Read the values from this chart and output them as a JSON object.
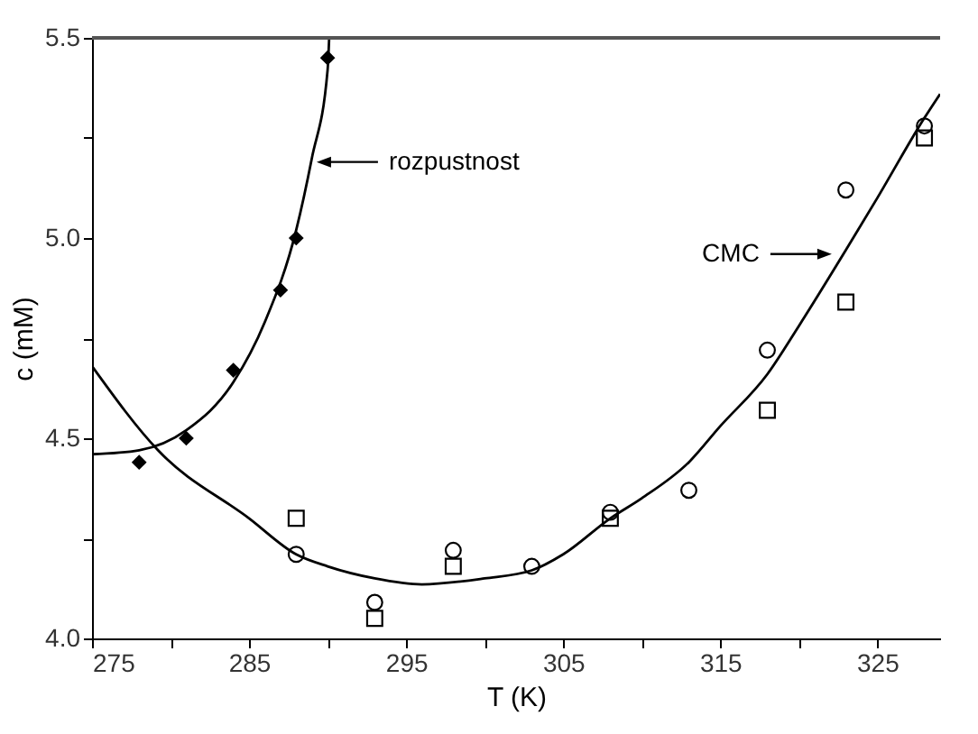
{
  "chart_data": {
    "type": "scatter",
    "xlabel": "T (K)",
    "ylabel": "c (mM)",
    "xlim": [
      275,
      329
    ],
    "ylim": [
      4.0,
      5.5
    ],
    "xticks": [
      275,
      {
        "value": 280,
        "label": null
      },
      285,
      {
        "value": 290,
        "label": null
      },
      295,
      {
        "value": 300,
        "label": null
      },
      305,
      {
        "value": 310,
        "label": null
      },
      315,
      {
        "value": 320,
        "label": null
      },
      325
    ],
    "yticks": [
      {
        "value": 4.0,
        "label": "4.0"
      },
      {
        "value": 4.25,
        "label": null
      },
      4.5,
      {
        "value": 4.75,
        "label": null
      },
      {
        "value": 5.0,
        "label": "5.0"
      },
      {
        "value": 5.25,
        "label": null
      },
      5.5
    ],
    "grid": false,
    "legend": false,
    "annotations": [
      {
        "text": "rozpustnost",
        "x": 289.3,
        "y": 5.19
      },
      {
        "text": "CMC",
        "x": 322.1,
        "y": 4.96
      }
    ],
    "series": [
      {
        "type": "line",
        "color": "#000000",
        "marker": "none",
        "line_style": "solid",
        "x": [
          275,
          278,
          281,
          284,
          286,
          288,
          289,
          290,
          290.1
        ],
        "values": [
          4.46,
          4.47,
          4.52,
          4.64,
          4.79,
          5.02,
          5.2,
          5.42,
          5.5
        ]
      },
      {
        "type": "line",
        "color": "#000000",
        "marker": "none",
        "line_style": "solid",
        "x": [
          275,
          279.2,
          285,
          288,
          290,
          293,
          296,
          300,
          303,
          305,
          308,
          310,
          313,
          315,
          318,
          320,
          323,
          325,
          328,
          329
        ],
        "values": [
          4.68,
          4.47,
          4.3,
          4.21,
          4.18,
          4.15,
          4.135,
          4.15,
          4.17,
          4.21,
          4.3,
          4.35,
          4.44,
          4.53,
          4.66,
          4.78,
          4.97,
          5.1,
          5.3,
          5.36
        ]
      },
      {
        "color": "#000000",
        "marker": "diamond",
        "x": [
          278,
          281,
          284,
          287,
          288,
          290
        ],
        "values": [
          4.44,
          4.5,
          4.67,
          4.87,
          5.0,
          5.45
        ]
      },
      {
        "color": "#000000",
        "marker": "circle",
        "x": [
          288,
          293,
          298,
          303,
          308,
          313,
          318,
          323,
          328
        ],
        "values": [
          4.21,
          4.09,
          4.22,
          4.18,
          4.315,
          4.37,
          4.72,
          5.12,
          5.28
        ]
      },
      {
        "color": "#000000",
        "marker": "square",
        "x": [
          288,
          293,
          298,
          308,
          318,
          323,
          328
        ],
        "values": [
          4.3,
          4.05,
          4.18,
          4.3,
          4.57,
          4.84,
          5.25
        ]
      }
    ]
  }
}
